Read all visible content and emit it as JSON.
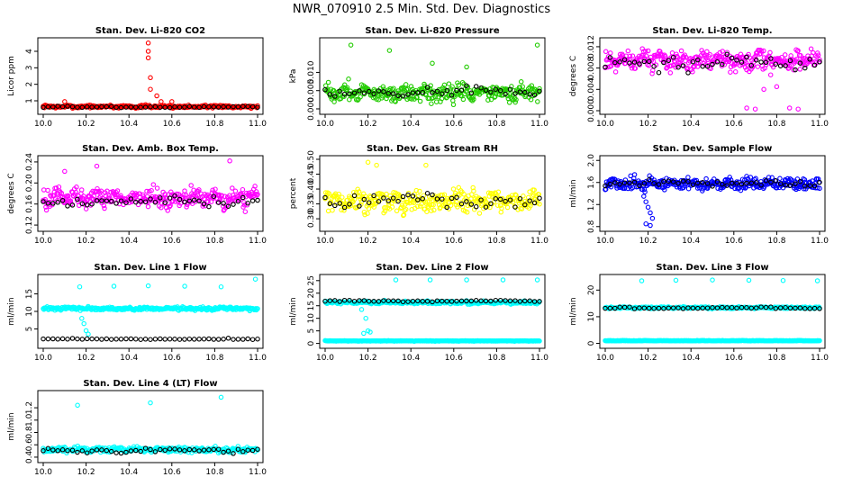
{
  "page_title": "NWR_070910  2.5 Min. Std. Dev. Diagnostics",
  "colors": {
    "red": "#ff0000",
    "green": "#22cc00",
    "magenta": "#ff00ff",
    "yellow": "#ffff00",
    "blue": "#0000ff",
    "cyan": "#00ffff",
    "black": "#000000"
  },
  "chart_data": [
    {
      "type": "scatter",
      "title": "Stan. Dev. Li-820 CO2",
      "xlabel": "",
      "ylabel": "Licor ppm",
      "xlim": [
        10.0,
        11.0
      ],
      "ylim": [
        0.4,
        4.6
      ],
      "xticks": [
        "10.0",
        "10.2",
        "10.4",
        "10.6",
        "10.8",
        "11.0"
      ],
      "yticks": [
        "1",
        "2",
        "3",
        "4"
      ],
      "series": [
        {
          "name": "main",
          "color": "red",
          "n": 330,
          "base": 0.65,
          "spread": 0.12,
          "spikes": [
            [
              10.49,
              4.5
            ],
            [
              10.49,
              4.0
            ],
            [
              10.49,
              3.6
            ],
            [
              10.5,
              2.4
            ],
            [
              10.5,
              1.7
            ],
            [
              10.53,
              1.3
            ],
            [
              10.55,
              0.95
            ],
            [
              10.1,
              0.95
            ],
            [
              10.6,
              0.95
            ]
          ]
        },
        {
          "name": "sample",
          "color": "black",
          "n": 45,
          "base": 0.62,
          "spread": 0.06,
          "spikes": []
        }
      ]
    },
    {
      "type": "scatter",
      "title": "Stan. Dev. Li-820 Pressure",
      "xlabel": "",
      "ylabel": "kPa",
      "xlim": [
        10.0,
        11.0
      ],
      "ylim": [
        -0.0005,
        0.0185
      ],
      "xticks": [
        "10.0",
        "10.2",
        "10.4",
        "10.6",
        "10.8",
        "11.0"
      ],
      "yticks": [
        "0.000",
        "0.005",
        "0.010"
      ],
      "series": [
        {
          "name": "main",
          "color": "green",
          "n": 330,
          "base": 0.0045,
          "spread": 0.0035,
          "spikes": [
            [
              10.12,
              0.0175
            ],
            [
              10.3,
              0.016
            ],
            [
              10.5,
              0.0125
            ],
            [
              10.66,
              0.0115
            ],
            [
              10.99,
              0.0175
            ]
          ]
        },
        {
          "name": "sample",
          "color": "black",
          "n": 45,
          "base": 0.0045,
          "spread": 0.002,
          "spikes": []
        }
      ]
    },
    {
      "type": "scatter",
      "title": "Stan. Dev. Li-820 Temp.",
      "xlabel": "",
      "ylabel": "degrees C",
      "xlim": [
        10.0,
        11.0
      ],
      "ylim": [
        0.0,
        0.013
      ],
      "xticks": [
        "10.0",
        "10.2",
        "10.4",
        "10.6",
        "10.8",
        "11.0"
      ],
      "yticks": [
        "0.000",
        "0.004",
        "0.008",
        "0.012"
      ],
      "series": [
        {
          "name": "main",
          "color": "magenta",
          "n": 330,
          "base": 0.0095,
          "spread": 0.0025,
          "spikes": [
            [
              10.66,
              0.0005
            ],
            [
              10.7,
              0.0003
            ],
            [
              10.86,
              0.0005
            ],
            [
              10.9,
              0.0003
            ],
            [
              10.74,
              0.004
            ],
            [
              10.8,
              0.0045
            ]
          ]
        },
        {
          "name": "sample",
          "color": "black",
          "n": 45,
          "base": 0.009,
          "spread": 0.002,
          "spikes": []
        }
      ]
    },
    {
      "type": "scatter",
      "title": "Stan. Dev. Amb. Box Temp.",
      "xlabel": "",
      "ylabel": "degrees C",
      "xlim": [
        10.0,
        11.0
      ],
      "ylim": [
        0.115,
        0.245
      ],
      "xticks": [
        "10.0",
        "10.2",
        "10.4",
        "10.6",
        "10.8",
        "11.0"
      ],
      "yticks": [
        "0.12",
        "0.16",
        "0.20",
        "0.24"
      ],
      "series": [
        {
          "name": "main",
          "color": "magenta",
          "n": 330,
          "base": 0.172,
          "spread": 0.025,
          "spikes": [
            [
              10.87,
              0.242
            ],
            [
              10.25,
              0.232
            ],
            [
              10.1,
              0.222
            ]
          ]
        },
        {
          "name": "sample",
          "color": "black",
          "n": 45,
          "base": 0.165,
          "spread": 0.015,
          "spikes": []
        }
      ]
    },
    {
      "type": "scatter",
      "title": "Stan. Dev. Gas Stream RH",
      "xlabel": "",
      "ylabel": "percent",
      "xlim": [
        10.0,
        11.0
      ],
      "ylim": [
        0.27,
        0.5
      ],
      "xticks": [
        "10.0",
        "10.2",
        "10.4",
        "10.6",
        "10.8",
        "11.0"
      ],
      "yticks": [
        "0.30",
        "0.35",
        "0.40",
        "0.45",
        "0.50"
      ],
      "series": [
        {
          "name": "main",
          "color": "yellow",
          "n": 330,
          "base": 0.36,
          "spread": 0.05,
          "spikes": [
            [
              10.2,
              0.49
            ],
            [
              10.24,
              0.48
            ],
            [
              10.47,
              0.48
            ]
          ]
        },
        {
          "name": "sample",
          "color": "black",
          "n": 45,
          "base": 0.36,
          "spread": 0.035,
          "spikes": []
        }
      ]
    },
    {
      "type": "scatter",
      "title": "Stan. Dev. Sample Flow",
      "xlabel": "",
      "ylabel": "ml/min",
      "xlim": [
        10.0,
        11.0
      ],
      "ylim": [
        0.78,
        2.02
      ],
      "xticks": [
        "10.0",
        "10.2",
        "10.4",
        "10.6",
        "10.8",
        "11.0"
      ],
      "yticks": [
        "0.8",
        "1.2",
        "1.6",
        "2.0"
      ],
      "series": [
        {
          "name": "main",
          "color": "blue",
          "n": 330,
          "base": 1.58,
          "spread": 0.16,
          "spikes": [
            [
              10.19,
              1.25
            ],
            [
              10.2,
              1.15
            ],
            [
              10.21,
              1.05
            ],
            [
              10.22,
              0.95
            ],
            [
              10.19,
              0.85
            ],
            [
              10.21,
              0.82
            ],
            [
              10.18,
              1.35
            ]
          ]
        },
        {
          "name": "sample",
          "color": "black",
          "n": 45,
          "base": 1.58,
          "spread": 0.08,
          "spikes": []
        }
      ]
    },
    {
      "type": "scatter",
      "title": "Stan. Dev. Line 1 Flow",
      "xlabel": "",
      "ylabel": "ml/min",
      "xlim": [
        10.0,
        11.0
      ],
      "ylim": [
        0.5,
        19.5
      ],
      "xticks": [
        "10.0",
        "10.2",
        "10.4",
        "10.6",
        "10.8",
        "11.0"
      ],
      "yticks": [
        "5",
        "10",
        "15"
      ],
      "series": [
        {
          "name": "line-flow",
          "color": "cyan",
          "n": 330,
          "base": 10.8,
          "spread": 0.7,
          "spikes": [
            [
              10.17,
              17.0
            ],
            [
              10.33,
              17.2
            ],
            [
              10.49,
              17.3
            ],
            [
              10.66,
              17.2
            ],
            [
              10.83,
              17.0
            ],
            [
              10.99,
              19.2
            ],
            [
              10.19,
              6.5
            ],
            [
              10.2,
              4.5
            ],
            [
              10.21,
              3.5
            ],
            [
              10.18,
              8.0
            ]
          ]
        },
        {
          "name": "sample",
          "color": "black",
          "n": 45,
          "base": 2.1,
          "spread": 0.25,
          "spikes": []
        }
      ]
    },
    {
      "type": "scatter",
      "title": "Stan. Dev. Line 2 Flow",
      "xlabel": "",
      "ylabel": "ml/min",
      "xlim": [
        10.0,
        11.0
      ],
      "ylim": [
        -0.5,
        26.0
      ],
      "xticks": [
        "10.0",
        "10.2",
        "10.4",
        "10.6",
        "10.8",
        "11.0"
      ],
      "yticks": [
        "0",
        "5",
        "10",
        "15",
        "20",
        "25"
      ],
      "series": [
        {
          "name": "line-flow",
          "color": "cyan",
          "n": 330,
          "base": 16.3,
          "spread": 0.8,
          "spikes": [
            [
              10.17,
              13.5
            ],
            [
              10.19,
              10.0
            ],
            [
              10.2,
              5.0
            ],
            [
              10.18,
              4.0
            ],
            [
              10.21,
              4.5
            ],
            [
              10.33,
              25.3
            ],
            [
              10.49,
              25.3
            ],
            [
              10.66,
              25.3
            ],
            [
              10.83,
              25.3
            ],
            [
              10.99,
              25.3
            ]
          ]
        },
        {
          "name": "baseline",
          "color": "cyan",
          "n": 330,
          "base": 1.0,
          "spread": 0.15,
          "spikes": []
        },
        {
          "name": "sample",
          "color": "black",
          "n": 45,
          "base": 16.9,
          "spread": 0.4,
          "spikes": []
        }
      ]
    },
    {
      "type": "scatter",
      "title": "Stan. Dev. Line 3 Flow",
      "xlabel": "",
      "ylabel": "ml/min",
      "xlim": [
        10.0,
        11.0
      ],
      "ylim": [
        -0.5,
        24.5
      ],
      "xticks": [
        "10.0",
        "10.2",
        "10.4",
        "10.6",
        "10.8",
        "11.0"
      ],
      "yticks": [
        "0",
        "10",
        "20"
      ],
      "series": [
        {
          "name": "line-flow",
          "color": "cyan",
          "n": 330,
          "base": 13.4,
          "spread": 0.5,
          "spikes": [
            [
              10.17,
              23.5
            ],
            [
              10.33,
              23.7
            ],
            [
              10.5,
              23.8
            ],
            [
              10.67,
              23.7
            ],
            [
              10.83,
              23.6
            ],
            [
              10.99,
              23.5
            ]
          ]
        },
        {
          "name": "baseline",
          "color": "cyan",
          "n": 330,
          "base": 1.0,
          "spread": 0.12,
          "spikes": []
        },
        {
          "name": "sample",
          "color": "black",
          "n": 45,
          "base": 13.3,
          "spread": 0.4,
          "spikes": []
        }
      ]
    },
    {
      "type": "scatter",
      "title": "Stan. Dev. Line 4 (LT) Flow",
      "xlabel": "",
      "ylabel": "ml/min",
      "xlim": [
        10.0,
        11.0
      ],
      "ylim": [
        0.37,
        1.42
      ],
      "xticks": [
        "10.0",
        "10.2",
        "10.4",
        "10.6",
        "10.8",
        "11.0"
      ],
      "yticks": [
        "0.4",
        "0.6",
        "0.8",
        "1.0",
        "1.2"
      ],
      "series": [
        {
          "name": "main",
          "color": "cyan",
          "n": 330,
          "base": 0.52,
          "spread": 0.06,
          "spikes": [
            [
              10.16,
              1.24
            ],
            [
              10.5,
              1.28
            ],
            [
              10.83,
              1.37
            ]
          ]
        },
        {
          "name": "sample",
          "color": "black",
          "n": 45,
          "base": 0.51,
          "spread": 0.05,
          "spikes": []
        }
      ]
    }
  ]
}
